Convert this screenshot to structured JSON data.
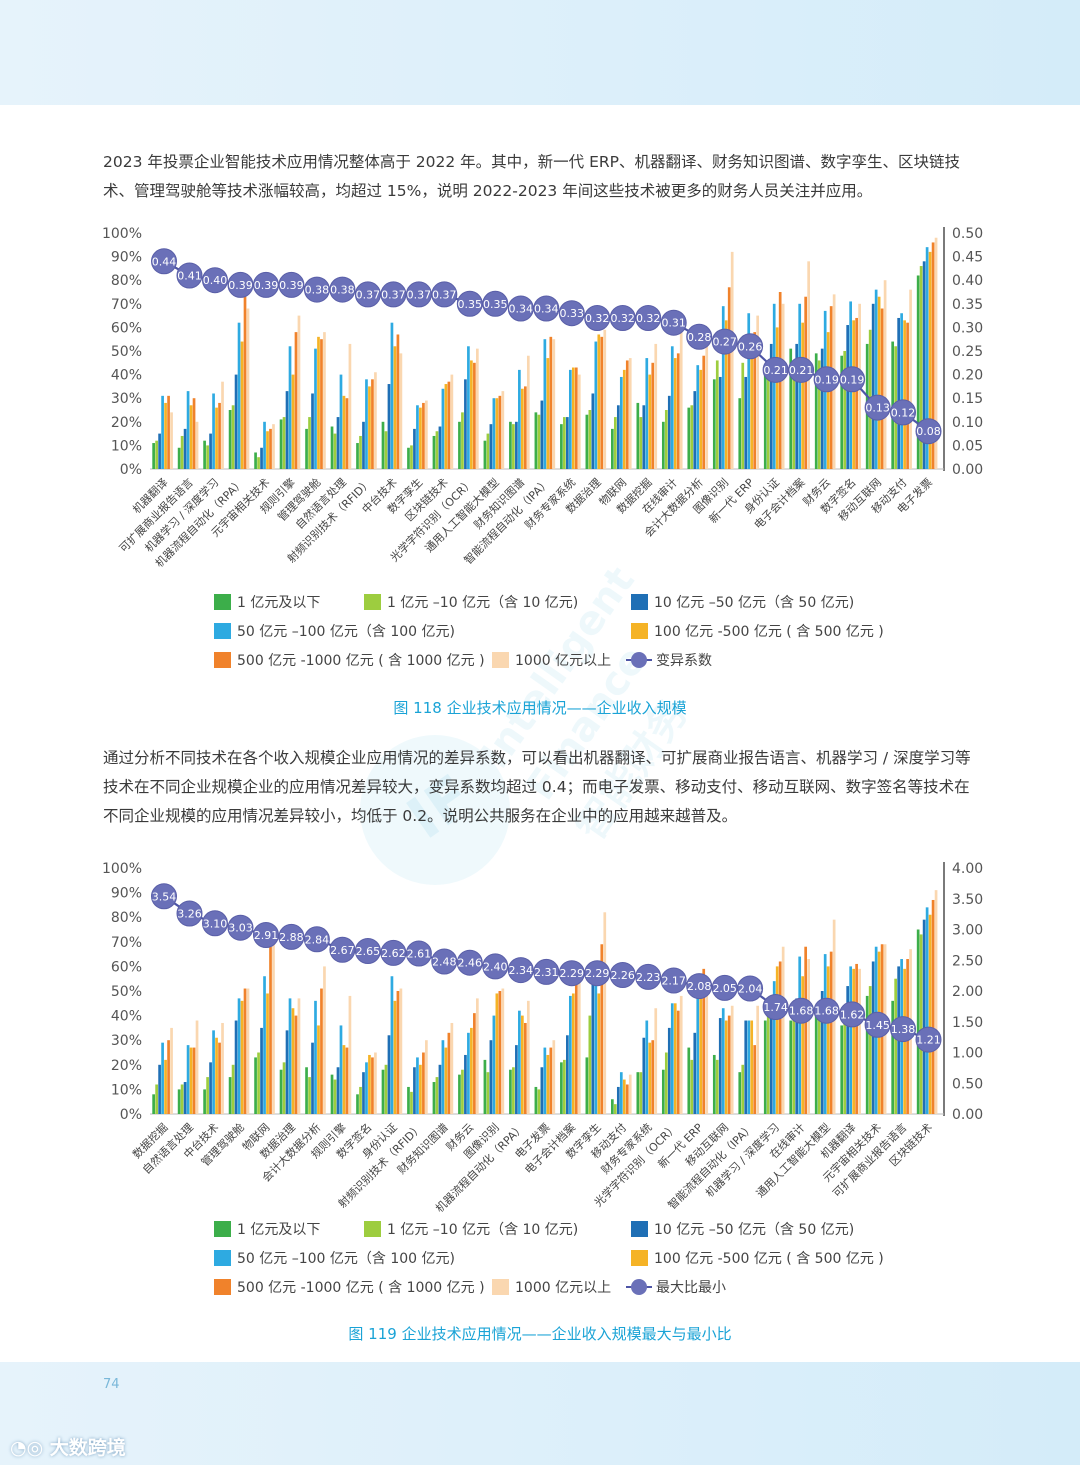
{
  "paragraph1": "2023 年投票企业智能技术应用情况整体高于 2022 年。其中，新一代 ERP、机器翻译、财务知识图谱、数字孪生、区块链技术、管理驾驶舱等技术涨幅较高，均超过 15%，说明 2022-2023 年间这些技术被更多的财务人员关注并应用。",
  "paragraph2": "通过分析不同技术在各个收入规模企业应用情况的差异系数，可以看出机器翻译、可扩展商业报告语言、机器学习 / 深度学习等技术在不同企业规模企业的应用情况差异较大，变异系数均超过 0.4；而电子发票、移动支付、移动互联网、数字签名等技术在不同企业规模的应用情况差异较小，均低于 0.2。说明公共服务在企业中的应用越来越普及。",
  "page_number": "74",
  "brand": "大数跨境",
  "watermark": {
    "logo": "IF",
    "text1": "Intelligent",
    "text2": "Finance",
    "text3": "智能财务"
  },
  "colors": {
    "s1": "#3cae4a",
    "s2": "#9dcd3f",
    "s3": "#1f6fb5",
    "s4": "#2eaae1",
    "s5": "#f5b326",
    "s6": "#f0822b",
    "s7": "#fad7b0",
    "line": "#4d55a6",
    "marker": "#6a70b8"
  },
  "legend_labels": [
    "1 亿元及以下",
    "1 亿元 –10 亿元（含 10 亿元)",
    "10 亿元 –50 亿元（含 50 亿元)",
    "50 亿元 –100 亿元（含 100 亿元)",
    "100 亿元 -500 亿元 ( 含 500 亿元 )",
    "500 亿元 -1000 亿元 ( 含 1000 亿元 )",
    "1000 亿元以上"
  ],
  "chart_data": [
    {
      "type": "bar",
      "title": "图 118  企业技术应用情况——企业收入规模",
      "caption": "图 118  企业技术应用情况——企业收入规模",
      "line_legend": "变异系数",
      "left_ticks": [
        "0%",
        "10%",
        "20%",
        "30%",
        "40%",
        "50%",
        "60%",
        "70%",
        "80%",
        "90%",
        "100%"
      ],
      "right_ticks": [
        "0.00",
        "0.05",
        "0.10",
        "0.15",
        "0.20",
        "0.25",
        "0.30",
        "0.35",
        "0.40",
        "0.45",
        "0.50"
      ],
      "ylim": [
        0,
        100
      ],
      "y2lim": [
        0,
        0.5
      ],
      "categories": [
        "机器翻译",
        "可扩展商业报告语言",
        "机器学习 / 深度学习",
        "机器流程自动化（RPA）",
        "元宇宙相关技术",
        "规则引擎",
        "管理驾驶舱",
        "自然语言处理",
        "射频识别技术（RFID）",
        "中台技术",
        "数字孪生",
        "区块链技术",
        "光学字符识别（OCR）",
        "通用人工智能大模型",
        "财务知识图谱",
        "智能流程自动化（IPA）",
        "财务专家系统",
        "数据治理",
        "物联网",
        "数据挖掘",
        "在线审计",
        "会计大数据分析",
        "图像识别",
        "新一代 ERP",
        "身份认证",
        "电子会计档案",
        "财务云",
        "数字签名",
        "移动互联网",
        "移动支付",
        "电子发票"
      ],
      "series": [
        {
          "name": "1 亿元及以下",
          "values": [
            11,
            9,
            12,
            25,
            7,
            21,
            17,
            18,
            11,
            20,
            9,
            14,
            20,
            12,
            20,
            24,
            19,
            23,
            17,
            28,
            20,
            26,
            38,
            30,
            40,
            51,
            49,
            48,
            53,
            54,
            82
          ]
        },
        {
          "name": "1 亿元 –10 亿元（含 10 亿元)",
          "values": [
            12,
            14,
            10,
            27,
            5,
            22,
            22,
            15,
            14,
            16,
            10,
            16,
            24,
            15,
            19,
            23,
            22,
            25,
            22,
            22,
            25,
            27,
            46,
            45,
            43,
            45,
            46,
            50,
            59,
            52,
            86
          ]
        },
        {
          "name": "10 亿元 –50 亿元（含 50 亿元)",
          "values": [
            15,
            17,
            15,
            40,
            9,
            33,
            32,
            22,
            20,
            36,
            17,
            18,
            38,
            19,
            20,
            29,
            22,
            32,
            27,
            27,
            31,
            33,
            39,
            39,
            53,
            53,
            51,
            61,
            70,
            64,
            88
          ]
        },
        {
          "name": "50 亿元 –100 亿元（含 100 亿元)",
          "values": [
            31,
            33,
            32,
            62,
            20,
            52,
            51,
            40,
            38,
            62,
            27,
            34,
            52,
            30,
            42,
            55,
            42,
            54,
            39,
            47,
            52,
            44,
            69,
            66,
            70,
            70,
            67,
            71,
            76,
            66,
            94
          ]
        },
        {
          "name": "100 亿元 -500 亿元 ( 含 500 亿元 )",
          "values": [
            28,
            27,
            26,
            54,
            16,
            40,
            56,
            31,
            35,
            52,
            26,
            36,
            46,
            30,
            34,
            47,
            43,
            57,
            42,
            40,
            47,
            42,
            63,
            55,
            60,
            62,
            58,
            63,
            73,
            63,
            92
          ]
        },
        {
          "name": "500 亿元 -1000 亿元 ( 含 1000 亿元 )",
          "values": [
            31,
            30,
            28,
            75,
            17,
            58,
            55,
            30,
            38,
            57,
            28,
            37,
            45,
            31,
            35,
            56,
            43,
            56,
            46,
            45,
            49,
            48,
            77,
            58,
            75,
            73,
            69,
            64,
            68,
            62,
            96
          ]
        },
        {
          "name": "1000 亿元以上",
          "values": [
            24,
            20,
            37,
            68,
            19,
            65,
            58,
            53,
            41,
            49,
            29,
            40,
            51,
            33,
            48,
            55,
            40,
            59,
            47,
            53,
            58,
            52,
            92,
            65,
            70,
            88,
            74,
            70,
            80,
            76,
            98
          ]
        }
      ],
      "line": {
        "name": "变异系数",
        "values": [
          0.44,
          0.41,
          0.4,
          0.39,
          0.39,
          0.39,
          0.38,
          0.38,
          0.37,
          0.37,
          0.37,
          0.37,
          0.35,
          0.35,
          0.34,
          0.34,
          0.33,
          0.32,
          0.32,
          0.32,
          0.31,
          0.28,
          0.27,
          0.26,
          0.21,
          0.21,
          0.19,
          0.19,
          0.13,
          0.12,
          0.08
        ],
        "labels": [
          "0.44",
          "0.41",
          "0.40",
          "0.39",
          "0.39",
          "0.39",
          "0.38",
          "0.38",
          "0.37",
          "0.37",
          "0.37",
          "0.37",
          "0.35",
          "0.35",
          "0.34",
          "0.34",
          "0.33",
          "0.32",
          "0.32",
          "0.32",
          "0.31",
          "0.28",
          "0.27",
          "0.26",
          "0.21",
          "0.21",
          "0.19",
          "0.19",
          "0.13",
          "0.12",
          "0.08"
        ]
      }
    },
    {
      "type": "bar",
      "title": "图 119  企业技术应用情况——企业收入规模最大与最小比",
      "caption": "图 119  企业技术应用情况——企业收入规模最大与最小比",
      "line_legend": "最大比最小",
      "left_ticks": [
        "0%",
        "10%",
        "20%",
        "30%",
        "40%",
        "50%",
        "60%",
        "70%",
        "80%",
        "90%",
        "100%"
      ],
      "right_ticks": [
        "0.00",
        "0.50",
        "1.00",
        "1.50",
        "2.00",
        "2.50",
        "3.00",
        "3.50",
        "4.00"
      ],
      "ylim": [
        0,
        100
      ],
      "y2lim": [
        0,
        4
      ],
      "categories": [
        "数据挖掘",
        "自然语言处理",
        "中台技术",
        "管理驾驶舱",
        "物联网",
        "数据治理",
        "会计大数据分析",
        "规则引擎",
        "数字签名",
        "身份认证",
        "射频识别技术（RFID）",
        "财务知识图谱",
        "财务云",
        "图像识别",
        "机器流程自动化（RPA）",
        "电子发票",
        "电子会计档案",
        "数字孪生",
        "移动支付",
        "财务专家系统",
        "光学字符识别（OCR）",
        "新一代 ERP",
        "移动互联网",
        "智能流程自动化（IPA）",
        "机器学习 / 深度学习",
        "在线审计",
        "通用人工智能大模型",
        "机器翻译",
        "元宇宙相关技术",
        "可扩展商业报告语言",
        "区块链技术"
      ],
      "series": [
        {
          "name": "1 亿元及以下",
          "values": [
            8,
            10,
            10,
            15,
            23,
            18,
            19,
            16,
            8,
            18,
            11,
            13,
            16,
            22,
            18,
            11,
            21,
            23,
            6,
            17,
            18,
            27,
            24,
            17,
            38,
            38,
            40,
            36,
            48,
            46,
            75
          ]
        },
        {
          "name": "1 亿元 –10 亿元（含 10 亿元)",
          "values": [
            12,
            12,
            15,
            20,
            25,
            21,
            15,
            14,
            11,
            20,
            9,
            15,
            18,
            17,
            19,
            10,
            22,
            40,
            4,
            17,
            25,
            22,
            22,
            20,
            40,
            41,
            43,
            43,
            52,
            55,
            73
          ]
        },
        {
          "name": "10 亿元 –50 亿元（含 50 亿元)",
          "values": [
            20,
            13,
            21,
            38,
            35,
            34,
            29,
            19,
            17,
            32,
            19,
            20,
            24,
            30,
            28,
            19,
            32,
            56,
            11,
            31,
            35,
            33,
            39,
            38,
            47,
            47,
            50,
            52,
            62,
            60,
            79
          ]
        },
        {
          "name": "50 亿元 –100 亿元（含 100 亿元)",
          "values": [
            29,
            28,
            34,
            47,
            56,
            47,
            46,
            36,
            21,
            56,
            23,
            30,
            33,
            40,
            42,
            27,
            48,
            55,
            17,
            38,
            45,
            48,
            43,
            38,
            54,
            64,
            65,
            60,
            68,
            63,
            84
          ]
        },
        {
          "name": "100 亿元 -500 亿元 ( 含 500 亿元 )",
          "values": [
            22,
            27,
            31,
            46,
            49,
            43,
            36,
            28,
            24,
            46,
            20,
            27,
            35,
            49,
            40,
            24,
            49,
            49,
            14,
            29,
            45,
            55,
            38,
            38,
            60,
            56,
            60,
            59,
            66,
            59,
            81
          ]
        },
        {
          "name": "500 亿元 -1000 亿元 ( 含 1000 亿元 )",
          "values": [
            30,
            27,
            29,
            51,
            68,
            40,
            51,
            27,
            23,
            50,
            25,
            33,
            41,
            50,
            37,
            27,
            53,
            69,
            12,
            30,
            42,
            59,
            40,
            28,
            62,
            68,
            66,
            61,
            69,
            63,
            87
          ]
        },
        {
          "name": "1000 亿元以上",
          "values": [
            35,
            38,
            37,
            51,
            72,
            47,
            60,
            48,
            25,
            51,
            30,
            37,
            47,
            51,
            46,
            30,
            54,
            82,
            16,
            43,
            48,
            55,
            44,
            44,
            68,
            63,
            79,
            59,
            69,
            67,
            91
          ]
        }
      ],
      "line": {
        "name": "最大比最小",
        "values": [
          3.54,
          3.26,
          3.1,
          3.03,
          2.91,
          2.88,
          2.84,
          2.67,
          2.65,
          2.62,
          2.61,
          2.48,
          2.46,
          2.4,
          2.34,
          2.31,
          2.29,
          2.29,
          2.26,
          2.23,
          2.17,
          2.08,
          2.05,
          2.04,
          1.74,
          1.68,
          1.68,
          1.62,
          1.45,
          1.38,
          1.21
        ],
        "labels": [
          "3.54",
          "3.26",
          "3.10",
          "3.03",
          "2.91",
          "2.88",
          "2.84",
          "2.67",
          "2.65",
          "2.62",
          "2.61",
          "2.48",
          "2.46",
          "2.40",
          "2.34",
          "2.31",
          "2.29",
          "2.29",
          "2.26",
          "2.23",
          "2.17",
          "2.08",
          "2.05",
          "2.04",
          "1.74",
          "1.68",
          "1.68",
          "1.62",
          "1.45",
          "1.38",
          "1.21"
        ]
      }
    }
  ]
}
